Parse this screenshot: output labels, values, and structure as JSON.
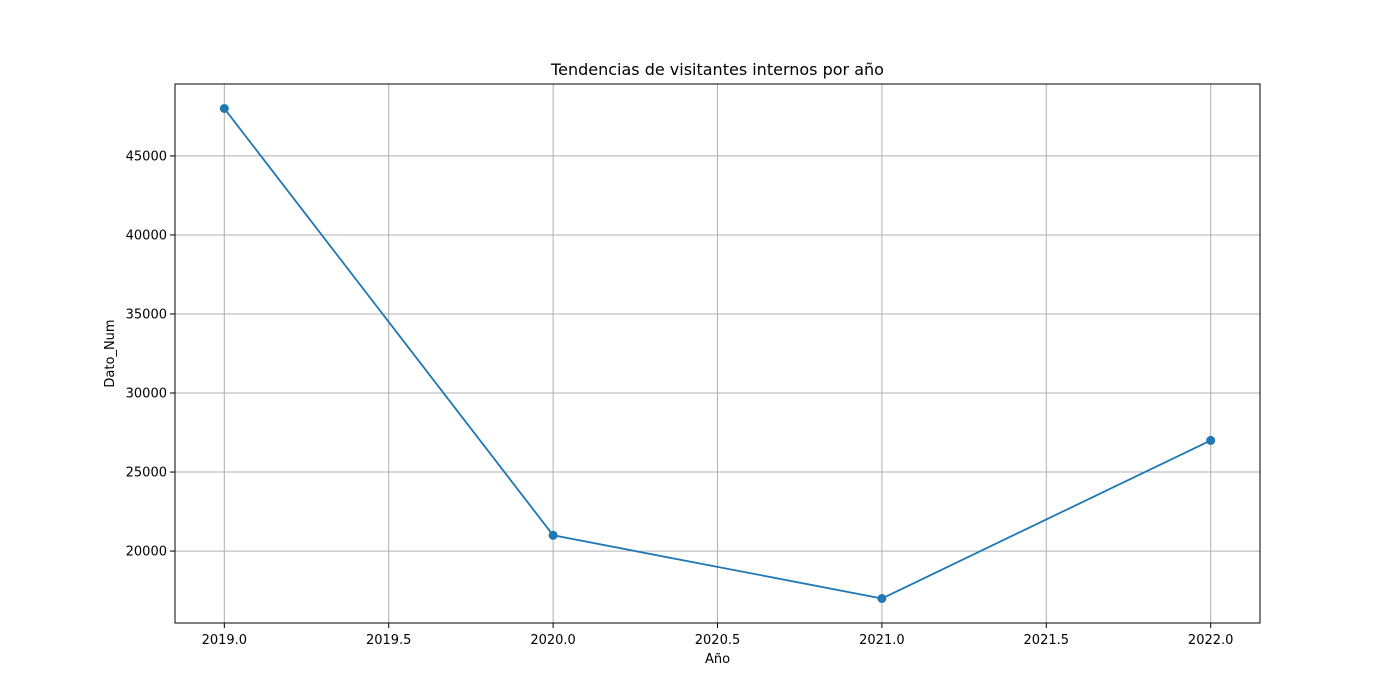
{
  "chart_data": {
    "type": "line",
    "title": "Tendencias de visitantes internos por año",
    "xlabel": "Año",
    "ylabel": "Dato_Num",
    "x": [
      2019,
      2020,
      2021,
      2022
    ],
    "series": [
      {
        "values": [
          48000,
          21000,
          17000,
          27000
        ],
        "color": "#1f77b4",
        "marker": "circle"
      }
    ],
    "xlim": [
      2018.85,
      2022.15
    ],
    "ylim": [
      15450,
      49550
    ],
    "x_ticks": [
      2019.0,
      2019.5,
      2020.0,
      2020.5,
      2021.0,
      2021.5,
      2022.0
    ],
    "x_tick_labels": [
      "2019.0",
      "2019.5",
      "2020.0",
      "2020.5",
      "2021.0",
      "2021.5",
      "2022.0"
    ],
    "y_ticks": [
      20000,
      25000,
      30000,
      35000,
      40000,
      45000
    ],
    "y_tick_labels": [
      "20000",
      "25000",
      "30000",
      "35000",
      "40000",
      "45000"
    ],
    "grid": true,
    "grid_color": "#b0b0b0",
    "legend": "none"
  }
}
